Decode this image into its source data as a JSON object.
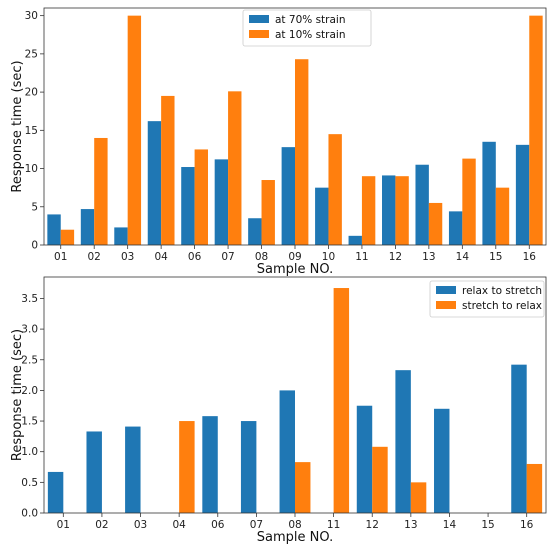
{
  "chart_data": [
    {
      "type": "bar",
      "categories": [
        "01",
        "02",
        "03",
        "04",
        "06",
        "07",
        "08",
        "09",
        "10",
        "11",
        "12",
        "13",
        "14",
        "15",
        "16"
      ],
      "series": [
        {
          "name": "at 70% strain",
          "color": "#1f77b4",
          "values": [
            4.0,
            4.7,
            2.3,
            16.2,
            10.2,
            11.2,
            3.5,
            12.8,
            7.5,
            1.2,
            9.1,
            10.5,
            4.4,
            13.5,
            13.1
          ]
        },
        {
          "name": "at 10% strain",
          "color": "#ff7f0e",
          "values": [
            2.0,
            14.0,
            30.0,
            19.5,
            12.5,
            20.1,
            8.5,
            24.3,
            14.5,
            9.0,
            9.0,
            5.5,
            11.3,
            7.5,
            30.0
          ]
        }
      ],
      "xlabel": "Sample NO.",
      "ylabel": "Response time (sec)",
      "ylim": [
        0,
        31
      ],
      "yticks": [
        0,
        5,
        10,
        15,
        20,
        25,
        30
      ],
      "ytick_labels": [
        "0",
        "5",
        "10",
        "15",
        "20",
        "25",
        "30"
      ],
      "legend_position": "top-center"
    },
    {
      "type": "bar",
      "categories": [
        "01",
        "02",
        "03",
        "04",
        "06",
        "07",
        "08",
        "11",
        "12",
        "13",
        "14",
        "15",
        "16"
      ],
      "series": [
        {
          "name": "relax to stretch",
          "color": "#1f77b4",
          "values": [
            0.67,
            1.33,
            1.41,
            0,
            1.58,
            1.5,
            2.0,
            0,
            1.75,
            2.33,
            1.7,
            0,
            2.42
          ]
        },
        {
          "name": "stretch to relax",
          "color": "#ff7f0e",
          "values": [
            0,
            0,
            0,
            1.5,
            0,
            0,
            0.83,
            3.67,
            1.08,
            0.5,
            0,
            0,
            0.8
          ]
        }
      ],
      "xlabel": "Sample NO.",
      "ylabel": "Response time (sec)",
      "ylim": [
        0,
        3.85
      ],
      "yticks": [
        0,
        0.5,
        1.0,
        1.5,
        2.0,
        2.5,
        3.0,
        3.5
      ],
      "ytick_labels": [
        "0.0",
        "0.5",
        "1.0",
        "1.5",
        "2.0",
        "2.5",
        "3.0",
        "3.5"
      ],
      "legend_position": "top-right"
    }
  ]
}
